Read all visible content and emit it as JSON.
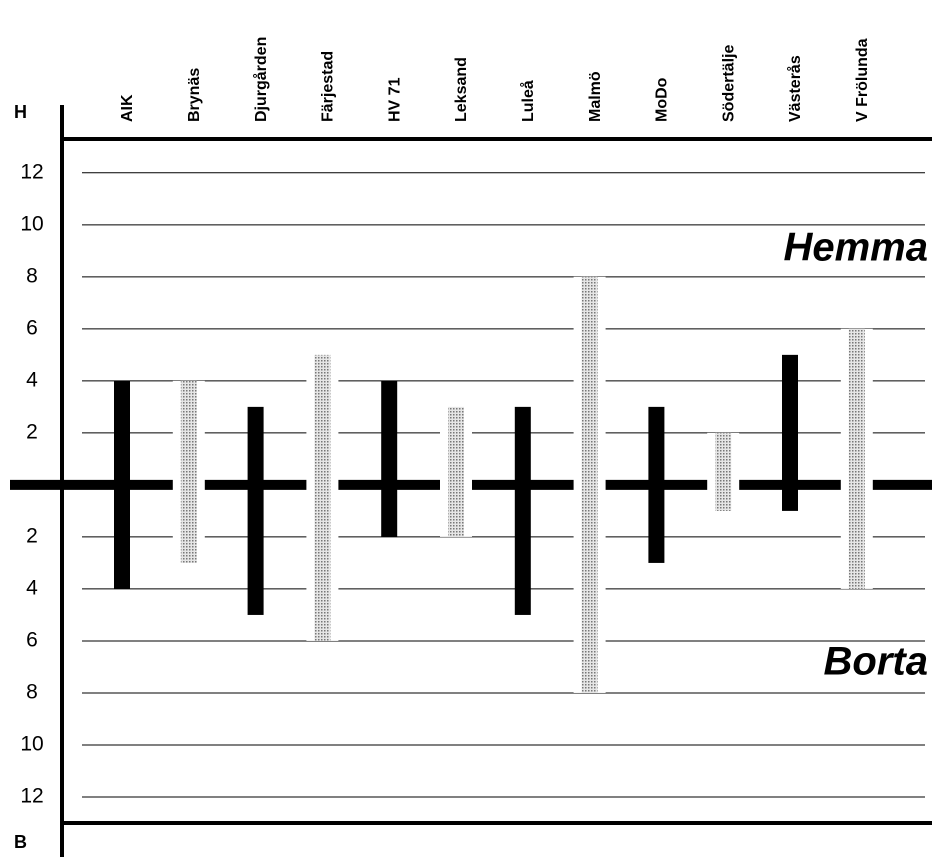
{
  "chart_data": {
    "type": "diverging-bar",
    "y_label_top": "H",
    "y_label_bottom": "B",
    "annotations": [
      "Hemma",
      "Borta"
    ],
    "categories": [
      "AIK",
      "Brynäs",
      "Djurgården",
      "Färjestad",
      "HV 71",
      "Leksand",
      "Luleå",
      "Malmö",
      "MoDo",
      "Södertälje",
      "Västerås",
      "V Frölunda"
    ],
    "colors": [
      "#000000",
      "#b5b5b5",
      "#000000",
      "#b5b5b5",
      "#000000",
      "#b5b5b5",
      "#000000",
      "#b5b5b5",
      "#000000",
      "#b5b5b5",
      "#000000",
      "#b5b5b5"
    ],
    "series": [
      {
        "name": "Hemma",
        "values": [
          4,
          4,
          3,
          5,
          4,
          3,
          3,
          8,
          3,
          2,
          5,
          6
        ]
      },
      {
        "name": "Borta",
        "values": [
          -4,
          -3,
          -5,
          -6,
          -2,
          -2,
          -5,
          -8,
          -3,
          -1,
          -1,
          -4
        ]
      }
    ],
    "ylim": [
      -13,
      13.3
    ],
    "yticks": [
      12,
      10,
      8,
      6,
      4,
      2,
      {
        "value": -2,
        "label": "2"
      },
      {
        "value": -4,
        "label": "4"
      },
      {
        "value": -6,
        "label": "6"
      },
      {
        "value": -8,
        "label": "8"
      },
      {
        "value": -10,
        "label": "10"
      },
      {
        "value": -12,
        "label": "12"
      }
    ],
    "grid": true
  }
}
